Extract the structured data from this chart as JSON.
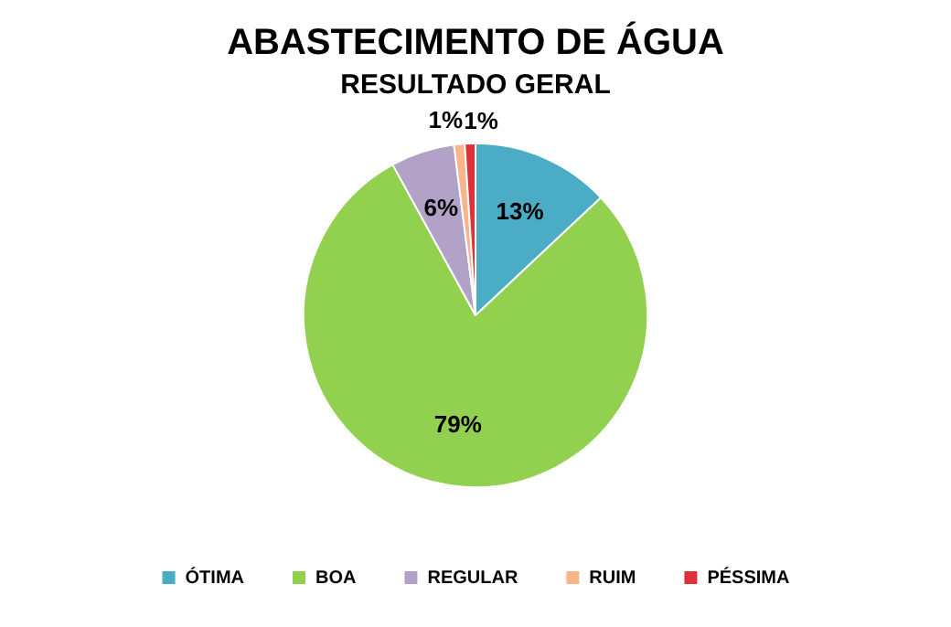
{
  "chart_data": {
    "type": "pie",
    "title": "ABASTECIMENTO DE ÁGUA",
    "subtitle": "RESULTADO GERAL",
    "categories": [
      "ÓTIMA",
      "BOA",
      "REGULAR",
      "RUIM",
      "PÉSSIMA"
    ],
    "values": [
      13,
      79,
      6,
      1,
      1
    ],
    "colors": [
      "#4bacc6",
      "#92d050",
      "#b3a2c7",
      "#f9b48a",
      "#e0303a"
    ],
    "value_labels": [
      "13%",
      "79%",
      "6%",
      "1%",
      "1%"
    ],
    "legend": "bottom"
  }
}
